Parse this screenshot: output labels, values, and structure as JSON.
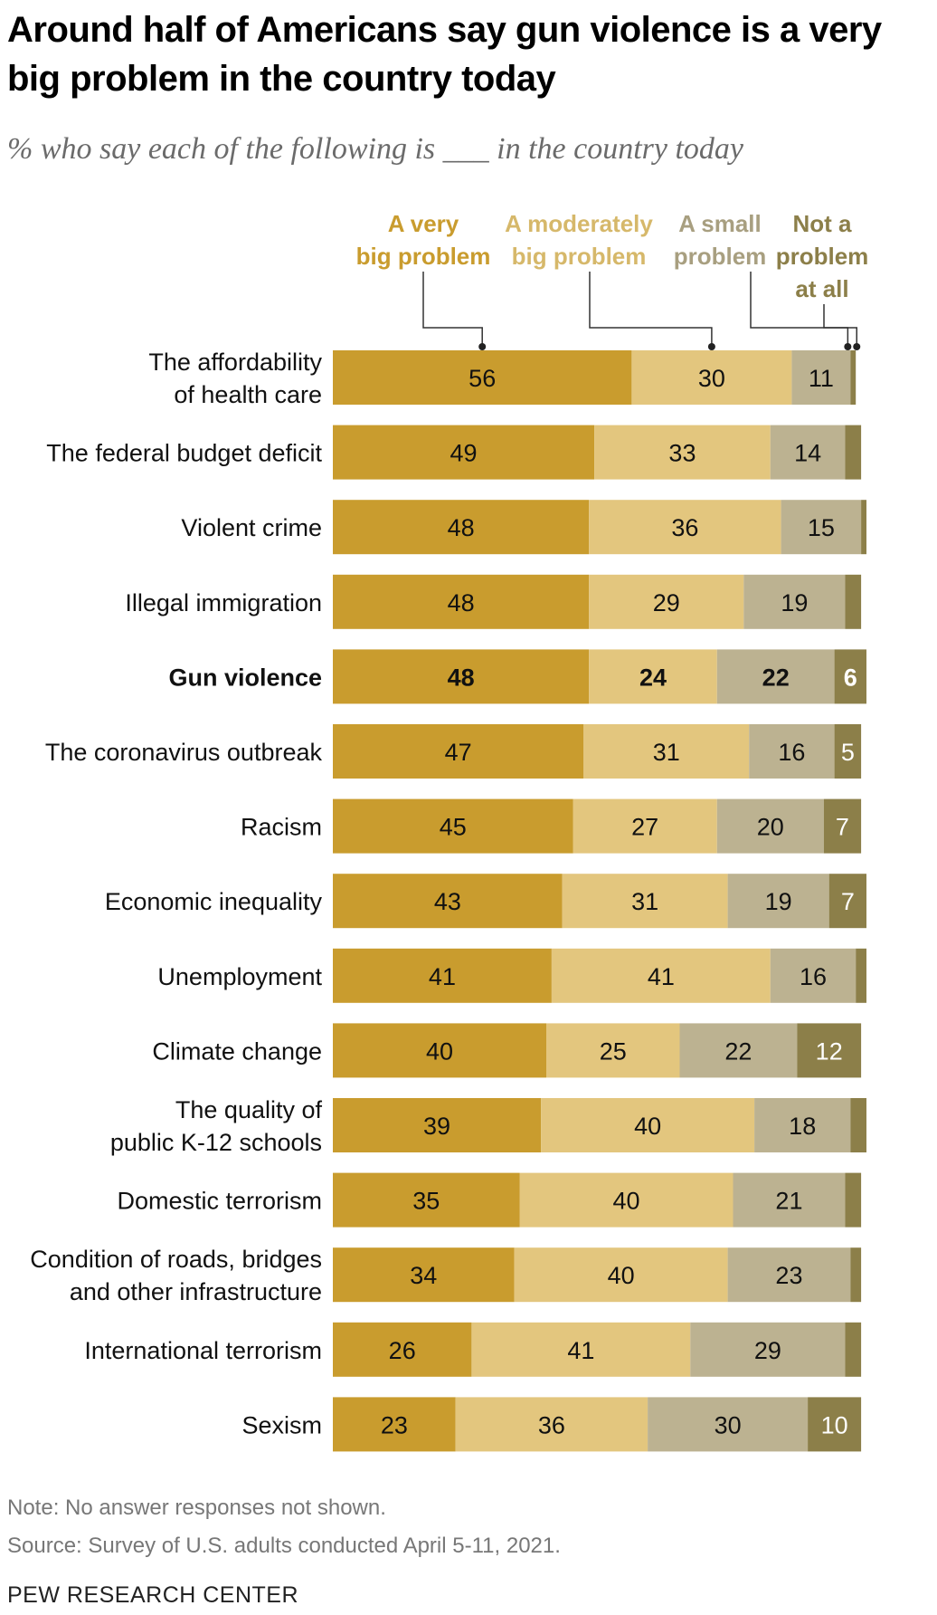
{
  "title_line1": "Around half of Americans say gun violence is a very",
  "title_line2": "big problem in the country today",
  "subtitle": "% who say each of the following is ___ in the country today",
  "note": "Note: No answer responses not shown.",
  "source": "Source: Survey of U.S. adults conducted April 5-11, 2021.",
  "brand": "PEW RESEARCH CENTER",
  "chart_data": {
    "type": "bar",
    "orientation": "horizontal",
    "stacked": true,
    "xlim": [
      0,
      100
    ],
    "legend_placement": "top",
    "highlighted_category": "Gun violence",
    "series": [
      {
        "name": "A very big problem",
        "label_lines": [
          "A very",
          "big problem"
        ],
        "color": "#c99c2e",
        "label_color": "#c99c2e"
      },
      {
        "name": "A moderately big problem",
        "label_lines": [
          "A moderately",
          "big problem"
        ],
        "color": "#e3c67e",
        "label_color": "#d6b86a"
      },
      {
        "name": "A small problem",
        "label_lines": [
          "A small",
          "problem"
        ],
        "color": "#bcb291",
        "label_color": "#a89f80"
      },
      {
        "name": "Not a problem at all",
        "label_lines": [
          "Not a",
          "problem",
          "at all"
        ],
        "color": "#8c7f49",
        "label_color": "#8c7f49"
      }
    ],
    "categories": [
      {
        "label_lines": [
          "The affordability",
          "of health care"
        ],
        "values": [
          56,
          30,
          11,
          1
        ],
        "labels": [
          "56",
          "30",
          "11",
          ""
        ]
      },
      {
        "label_lines": [
          "The federal budget deficit"
        ],
        "values": [
          49,
          33,
          14,
          3
        ],
        "labels": [
          "49",
          "33",
          "14",
          ""
        ]
      },
      {
        "label_lines": [
          "Violent crime"
        ],
        "values": [
          48,
          36,
          15,
          1
        ],
        "labels": [
          "48",
          "36",
          "15",
          ""
        ]
      },
      {
        "label_lines": [
          "Illegal immigration"
        ],
        "values": [
          48,
          29,
          19,
          3
        ],
        "labels": [
          "48",
          "29",
          "19",
          ""
        ]
      },
      {
        "label_lines": [
          "Gun violence"
        ],
        "values": [
          48,
          24,
          22,
          6
        ],
        "labels": [
          "48",
          "24",
          "22",
          "6"
        ]
      },
      {
        "label_lines": [
          "The coronavirus outbreak"
        ],
        "values": [
          47,
          31,
          16,
          5
        ],
        "labels": [
          "47",
          "31",
          "16",
          "5"
        ]
      },
      {
        "label_lines": [
          "Racism"
        ],
        "values": [
          45,
          27,
          20,
          7
        ],
        "labels": [
          "45",
          "27",
          "20",
          "7"
        ]
      },
      {
        "label_lines": [
          "Economic inequality"
        ],
        "values": [
          43,
          31,
          19,
          7
        ],
        "labels": [
          "43",
          "31",
          "19",
          "7"
        ]
      },
      {
        "label_lines": [
          "Unemployment"
        ],
        "values": [
          41,
          41,
          16,
          2
        ],
        "labels": [
          "41",
          "41",
          "16",
          ""
        ]
      },
      {
        "label_lines": [
          "Climate change"
        ],
        "values": [
          40,
          25,
          22,
          12
        ],
        "labels": [
          "40",
          "25",
          "22",
          "12"
        ]
      },
      {
        "label_lines": [
          "The quality of",
          "public K-12 schools"
        ],
        "values": [
          39,
          40,
          18,
          3
        ],
        "labels": [
          "39",
          "40",
          "18",
          ""
        ]
      },
      {
        "label_lines": [
          "Domestic terrorism"
        ],
        "values": [
          35,
          40,
          21,
          3
        ],
        "labels": [
          "35",
          "40",
          "21",
          ""
        ]
      },
      {
        "label_lines": [
          "Condition of roads, bridges",
          "and other infrastructure"
        ],
        "values": [
          34,
          40,
          23,
          2
        ],
        "labels": [
          "34",
          "40",
          "23",
          ""
        ]
      },
      {
        "label_lines": [
          "International terrorism"
        ],
        "values": [
          26,
          41,
          29,
          3
        ],
        "labels": [
          "26",
          "41",
          "29",
          ""
        ]
      },
      {
        "label_lines": [
          "Sexism"
        ],
        "values": [
          23,
          36,
          30,
          10
        ],
        "labels": [
          "23",
          "36",
          "30",
          "10"
        ]
      }
    ]
  }
}
